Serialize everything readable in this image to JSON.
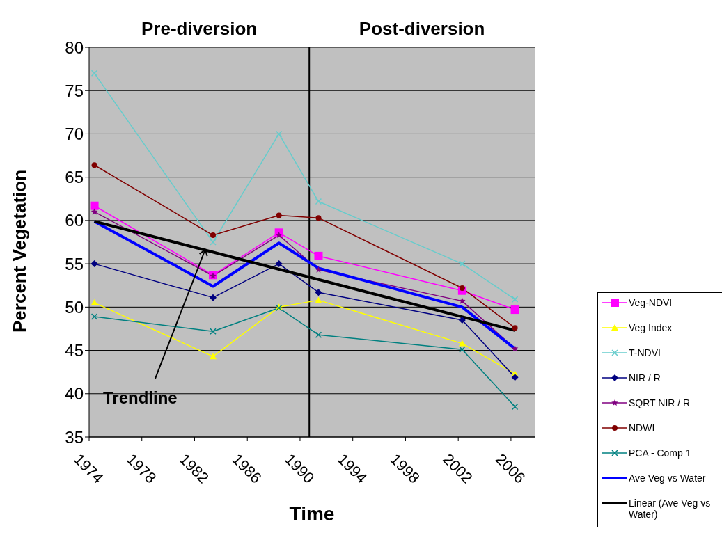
{
  "chart_data": {
    "type": "line",
    "xlabel": "Time",
    "ylabel": "Percent Vegetation",
    "xlim": [
      1974,
      2007.8
    ],
    "xticks": [
      1974,
      1978,
      1982,
      1986,
      1990,
      1994,
      1998,
      2002,
      2006
    ],
    "ylim": [
      35,
      80
    ],
    "yticks": [
      35,
      40,
      45,
      50,
      55,
      60,
      65,
      70,
      75,
      80
    ],
    "x": [
      1974.4,
      1983.4,
      1988.4,
      1991.4,
      2002.3,
      2006.3
    ],
    "grid": "y",
    "legend": "bottom right",
    "series": [
      {
        "name": "Veg-NDVI",
        "color": "#ff00ff",
        "marker": "square",
        "values": [
          61.7,
          53.7,
          58.6,
          55.9,
          51.9,
          49.7
        ]
      },
      {
        "name": "Veg Index",
        "color": "#ffff00",
        "marker": "triangle",
        "values": [
          50.5,
          44.3,
          50.0,
          50.8,
          45.8,
          42.3
        ]
      },
      {
        "name": "T-NDVI",
        "color": "#66cccc",
        "marker": "cross",
        "values": [
          77.0,
          57.5,
          70.0,
          62.2,
          55.0,
          50.9
        ]
      },
      {
        "name": "NIR / R",
        "color": "#000080",
        "marker": "diamond",
        "values": [
          55.0,
          51.1,
          55.0,
          51.7,
          48.5,
          41.9
        ]
      },
      {
        "name": "SQRT NIR / R",
        "color": "#800080",
        "marker": "star",
        "values": [
          61.0,
          53.6,
          58.3,
          54.3,
          50.7,
          45.2
        ]
      },
      {
        "name": "NDWI",
        "color": "#800000",
        "marker": "circle",
        "values": [
          66.4,
          58.3,
          60.6,
          60.3,
          52.2,
          47.6
        ]
      },
      {
        "name": "PCA - Comp 1",
        "color": "#008080",
        "marker": "cross",
        "values": [
          48.9,
          47.2,
          49.9,
          46.8,
          45.1,
          38.5
        ]
      },
      {
        "name": "Ave Veg vs Water",
        "color": "#0000ff",
        "marker": "none",
        "values": [
          59.9,
          52.4,
          57.4,
          54.5,
          50.0,
          45.2
        ]
      },
      {
        "name": "Linear (Ave Veg vs Water)",
        "color": "#000000",
        "marker": "none",
        "x": [
          1974.4,
          2006.3
        ],
        "values": [
          59.9,
          47.3
        ]
      }
    ],
    "ref_lines": [
      {
        "axis": "x",
        "value": 1990.7,
        "color": "#000000"
      }
    ],
    "annotations": [
      "Pre-diversion",
      "Post-diversion",
      {
        "text": "Trendline",
        "x": 1982.8,
        "y": 56.6
      }
    ]
  }
}
